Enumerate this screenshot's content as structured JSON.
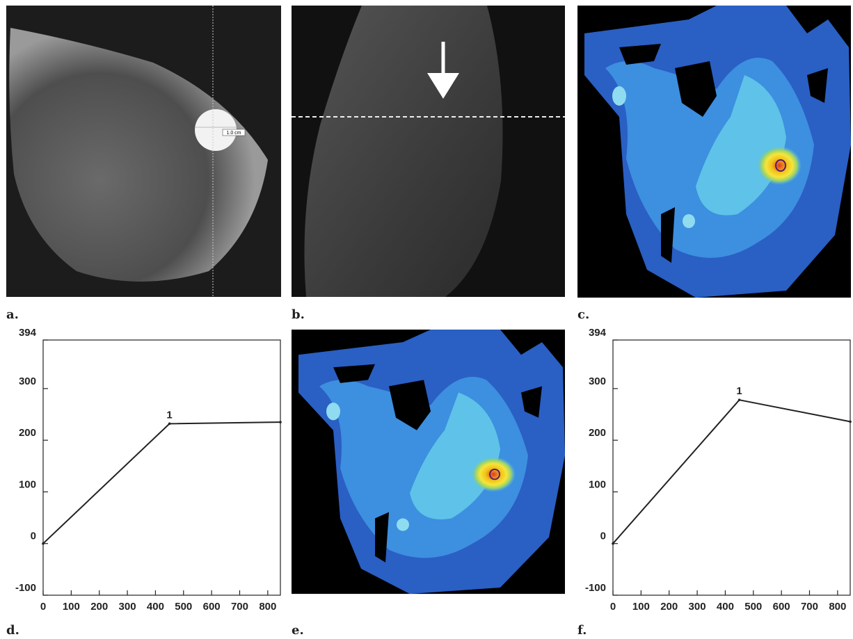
{
  "panels": {
    "labels": [
      "a.",
      "b.",
      "c.",
      "d.",
      "e.",
      "f."
    ],
    "scale_label": "1.0 cm"
  },
  "chart_data": [
    {
      "type": "line",
      "x": [
        0,
        450,
        845
      ],
      "values": [
        0,
        232,
        235
      ],
      "point_labels": [
        null,
        "1",
        null
      ],
      "color": "#222222",
      "xlim": [
        0,
        845
      ],
      "ylim": [
        -100,
        394
      ],
      "xticks": [
        0,
        100,
        200,
        300,
        400,
        500,
        600,
        700,
        800
      ],
      "yticks": [
        -100,
        0,
        100,
        200,
        300,
        394
      ]
    },
    {
      "type": "line",
      "x": [
        0,
        450,
        845
      ],
      "values": [
        0,
        278,
        236
      ],
      "point_labels": [
        null,
        "1",
        null
      ],
      "color": "#222222",
      "xlim": [
        0,
        845
      ],
      "ylim": [
        -100,
        394
      ],
      "xticks": [
        0,
        100,
        200,
        300,
        400,
        500,
        600,
        700,
        800
      ],
      "yticks": [
        -100,
        0,
        100,
        200,
        300,
        394
      ]
    }
  ]
}
